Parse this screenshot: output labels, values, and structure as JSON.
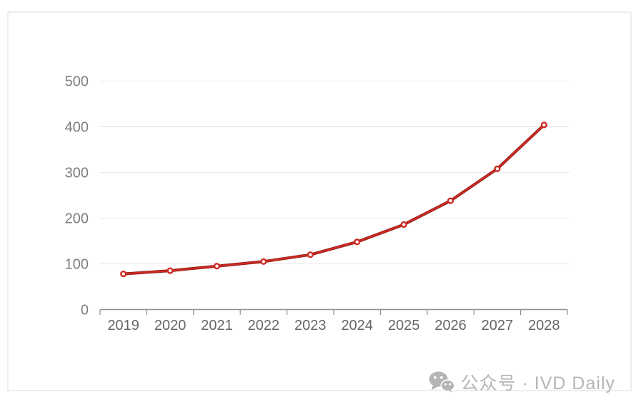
{
  "chart_data": {
    "type": "line",
    "title": "",
    "xlabel": "",
    "ylabel": "",
    "categories": [
      "2019",
      "2020",
      "2021",
      "2022",
      "2023",
      "2024",
      "2025",
      "2026",
      "2027",
      "2028"
    ],
    "series": [
      {
        "name": "value",
        "values": [
          78,
          85,
          95,
          105,
          120,
          148,
          186,
          238,
          308,
          404
        ]
      }
    ],
    "ylim": [
      0,
      500
    ],
    "ytick_step": 100,
    "yticks": [
      0,
      100,
      200,
      300,
      400,
      500
    ],
    "grid": true,
    "legend": false,
    "colors": {
      "line": "#cd2a23",
      "line_shadow": "#8c1a16",
      "marker_fill": "#ffffff",
      "grid": "#e7e7e7",
      "axis": "#8f8f8f",
      "x_tick_label": "#666666",
      "y_tick_label": "#7d7d7d"
    }
  },
  "watermark": {
    "text": "公众号 · IVD Daily",
    "icon": "wechat-icon",
    "color": "#b5b5b5"
  }
}
